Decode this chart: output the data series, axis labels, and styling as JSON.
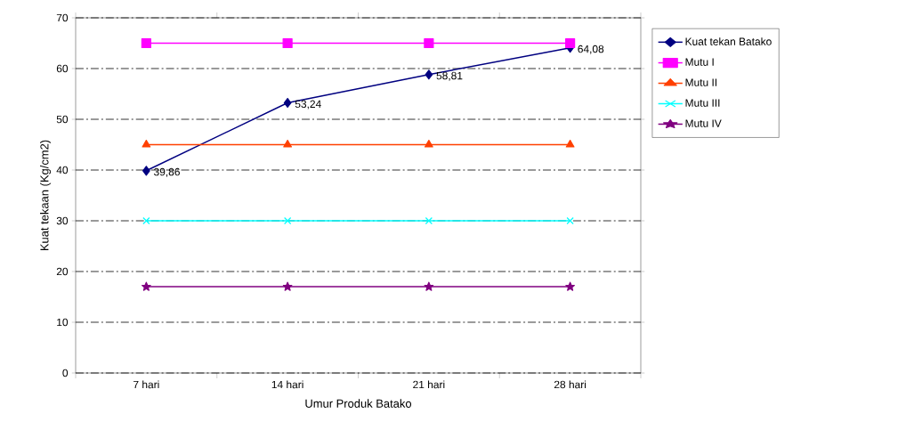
{
  "chart_data": {
    "type": "line",
    "xlabel": "Umur Produk Batako",
    "ylabel": "Kuat tekaan (Kg/cm2)",
    "categories": [
      "7 hari",
      "14 hari",
      "21 hari",
      "28 hari"
    ],
    "series": [
      {
        "name": "Kuat tekan Batako",
        "color": "#000080",
        "marker": "diamond",
        "values": [
          39.86,
          53.24,
          58.81,
          64.08
        ],
        "value_labels": [
          "39,86",
          "53,24",
          "58,81",
          "64,08"
        ]
      },
      {
        "name": "Mutu I",
        "color": "#ff00ff",
        "marker": "square",
        "values": [
          65,
          65,
          65,
          65
        ]
      },
      {
        "name": "Mutu II",
        "color": "#ff4000",
        "marker": "triangle",
        "values": [
          45,
          45,
          45,
          45
        ]
      },
      {
        "name": "Mutu III",
        "color": "#00ffff",
        "marker": "cross",
        "values": [
          30,
          30,
          30,
          30
        ]
      },
      {
        "name": "Mutu IV",
        "color": "#800080",
        "marker": "star",
        "values": [
          17,
          17,
          17,
          17
        ]
      }
    ],
    "ylim": [
      0,
      70
    ],
    "yticks": [
      0,
      10,
      20,
      30,
      40,
      50,
      60,
      70
    ],
    "grid": "y",
    "legend": "right",
    "line_style": "solid"
  }
}
